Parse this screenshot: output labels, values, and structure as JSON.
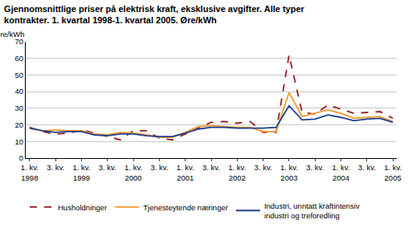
{
  "chart_data": {
    "type": "line",
    "title": "Gjennomsnittlige priser på elektrisk kraft, eksklusive avgifter. Alle typer\nkontrakter. 1. kvartal 1998-1. kvartal 2005. Øre/kWh",
    "y_label": "Øre/kWh",
    "categories": [
      "1. kv.\n1998",
      null,
      "3. kv.",
      null,
      "1. kv.\n1999",
      null,
      "3. kv.",
      null,
      "1. kv.\n2000",
      null,
      "3. kv.",
      null,
      "1. kv.\n2001",
      null,
      "3. kv.",
      null,
      "1. kv.\n2002",
      null,
      "3. kv.",
      null,
      "1. kv.\n2003",
      null,
      "3. kv.",
      null,
      "1. kv.\n2004",
      null,
      "3. kv.",
      null,
      "1. kv.\n2005"
    ],
    "series": [
      {
        "name": "Husholdninger",
        "color": "#9e1b20",
        "line_style": "dashed",
        "values": [
          18.5,
          16,
          14.5,
          15,
          17,
          15,
          13,
          11,
          16.5,
          16.5,
          12,
          11,
          14.5,
          18,
          21.5,
          22,
          21,
          22,
          15.5,
          15.5,
          62,
          27.5,
          26.5,
          32,
          29.5,
          27,
          27.5,
          28,
          24
        ]
      },
      {
        "name": "Tjenesteytende næringer",
        "color": "#f39b2f",
        "line_style": "solid",
        "values": [
          18,
          16.5,
          17,
          16.5,
          16.5,
          14.5,
          14,
          15.5,
          15,
          14,
          12.5,
          12.5,
          15.5,
          19,
          19.5,
          19,
          18.5,
          18.5,
          16,
          16,
          39.5,
          25,
          27,
          29,
          27,
          24,
          24.5,
          25,
          22
        ]
      },
      {
        "name": "Industri, unntatt kraftintensiv\nindustri og treforedling",
        "color": "#1d3f91",
        "line_style": "solid",
        "values": [
          18,
          16.5,
          15.5,
          16,
          16,
          14,
          13.5,
          14.5,
          14.5,
          13.5,
          13,
          13,
          15,
          17.5,
          18.5,
          18.5,
          18,
          18,
          18,
          18.5,
          31.5,
          23,
          23.5,
          26,
          24.5,
          22.5,
          23.5,
          24,
          21.5
        ]
      }
    ],
    "ylim": [
      0,
      70
    ],
    "yticks": [
      0,
      10,
      20,
      30,
      40,
      50,
      60,
      70
    ],
    "grid": true,
    "legend": "bottom"
  }
}
